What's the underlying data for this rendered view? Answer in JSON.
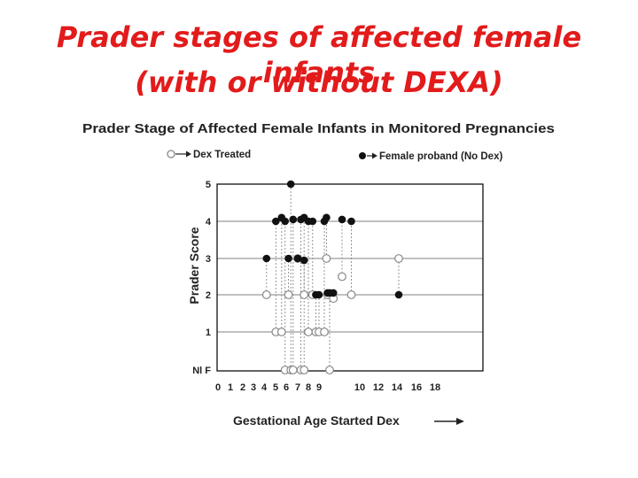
{
  "slide": {
    "title_line1": "Prader stages of affected female infants",
    "title_line2": "(with or without DEXA)"
  },
  "colors": {
    "title": "#e21b1b",
    "ink": "#111111",
    "open_marker": "#888888",
    "grid": "#9a9a9a"
  },
  "chart_data": {
    "type": "scatter",
    "title": "Prader Stage of Affected Female Infants in Monitored Pregnancies",
    "xlabel": "Gestational Age Started Dex",
    "ylabel": "Prader Score",
    "x_ticks": [
      "0",
      "1",
      "2",
      "3",
      "4",
      "5",
      "6",
      "7",
      "8",
      "9",
      "10",
      "12",
      "14",
      "16",
      "18"
    ],
    "y_ticks": [
      {
        "value": 0,
        "label": "Nl F"
      },
      {
        "value": 1,
        "label": "1"
      },
      {
        "value": 2,
        "label": "2"
      },
      {
        "value": 3,
        "label": "3"
      },
      {
        "value": 4,
        "label": "4"
      },
      {
        "value": 5,
        "label": "5"
      }
    ],
    "ylim": [
      0,
      5
    ],
    "grid": true,
    "legend": [
      {
        "name": "Dex Treated",
        "marker": "open"
      },
      {
        "name": "Female proband (No Dex)",
        "marker": "filled"
      }
    ],
    "pairs": [
      {
        "x": 3.2,
        "treated": 2,
        "proband": 3
      },
      {
        "x": 4.1,
        "treated": 1,
        "proband": 4
      },
      {
        "x": 4.6,
        "treated": 1,
        "proband": 4.1
      },
      {
        "x": 4.9,
        "treated": 0,
        "proband": 4
      },
      {
        "x": 5.2,
        "treated": 2,
        "proband": 3
      },
      {
        "x": 5.4,
        "treated": 0,
        "proband": 5
      },
      {
        "x": 5.6,
        "treated": 0,
        "proband": 4.05
      },
      {
        "x": 6.0,
        "treated": 3,
        "proband": 3
      },
      {
        "x": 6.3,
        "treated": 0,
        "proband": 4.05
      },
      {
        "x": 6.6,
        "treated": 2,
        "proband": 4.1
      },
      {
        "x": 6.6,
        "treated": 0,
        "proband": 2.95
      },
      {
        "x": 7.0,
        "treated": 1,
        "proband": 4
      },
      {
        "x": 7.4,
        "treated": 2,
        "proband": 4
      },
      {
        "x": 7.7,
        "treated": 1,
        "proband": 2
      },
      {
        "x": 8.0,
        "treated": 1,
        "proband": 2
      },
      {
        "x": 8.5,
        "treated": 1,
        "proband": 4
      },
      {
        "x": 8.7,
        "treated": 3,
        "proband": 4.1
      },
      {
        "x": 8.8,
        "treated": 2,
        "proband": 2.05
      },
      {
        "x": 9.0,
        "treated": 0,
        "proband": 2.05
      },
      {
        "x": 9.3,
        "treated": 1.9,
        "proband": 2.05
      },
      {
        "x": 10.0,
        "treated": 2.5,
        "proband": 4.05
      },
      {
        "x": 11.0,
        "treated": 2,
        "proband": 4
      },
      {
        "x": 16.0,
        "treated": 3,
        "proband": 2
      }
    ]
  }
}
